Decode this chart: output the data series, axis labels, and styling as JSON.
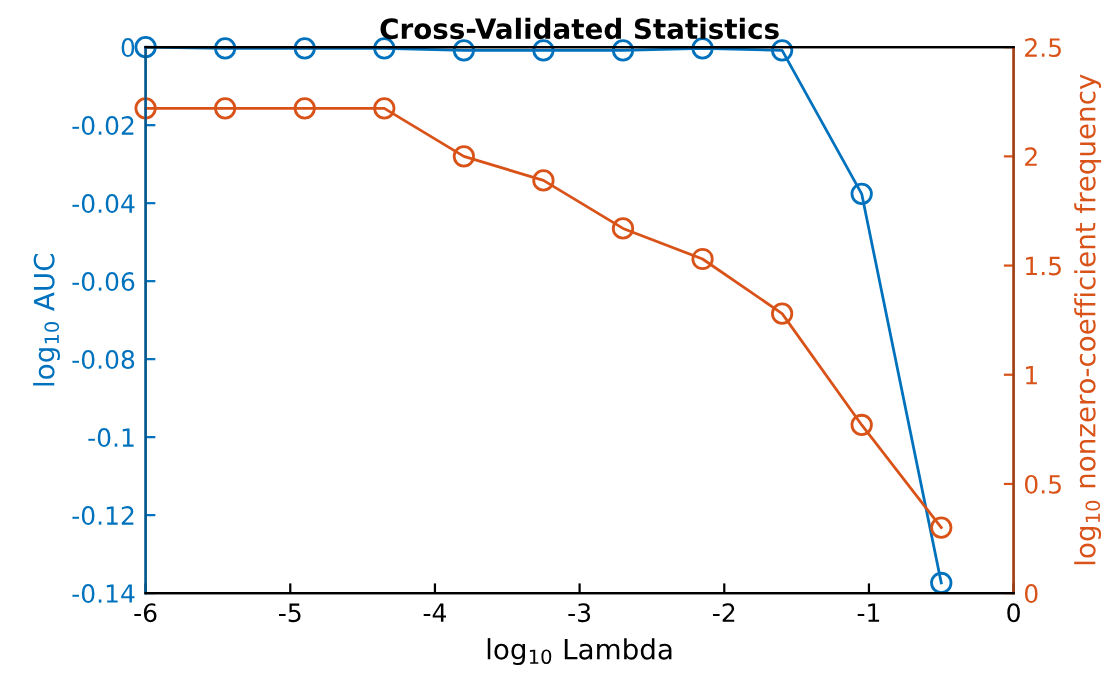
{
  "chart_data": {
    "type": "line",
    "title": "Cross-Validated Statistics",
    "xlabel": "log$_{10}$ Lambda",
    "ylabel": "log$_{10}$ AUC",
    "y2label": "log$_{10}$ nonzero-coefficient frequency",
    "x": [
      -6,
      -5.45,
      -4.9,
      -4.35,
      -3.8,
      -3.25,
      -2.7,
      -2.15,
      -1.6,
      -1.05,
      -0.5
    ],
    "series": [
      {
        "color": "#0072bd",
        "values": [
          0,
          -0.0003,
          -0.0003,
          -0.0003,
          -0.0008,
          -0.0008,
          -0.0008,
          -0.0003,
          -0.0008,
          -0.0376,
          -0.1374
        ]
      },
      {
        "color": "#d95319",
        "axis": "y2",
        "values": [
          2.22,
          2.22,
          2.22,
          2.22,
          2.0,
          1.89,
          1.67,
          1.53,
          1.28,
          0.77,
          0.3
        ]
      }
    ],
    "xlim": [
      -6,
      0
    ],
    "xticks": [
      -6,
      -5,
      -4,
      -3,
      -2,
      -1,
      0
    ],
    "ylim": [
      -0.14,
      0
    ],
    "yticks": [
      -0.14,
      -0.12,
      -0.1,
      -0.08,
      -0.06,
      -0.04,
      -0.02,
      0
    ],
    "y2lim": [
      0,
      2.5
    ],
    "y2ticks": [
      0,
      0.5,
      1,
      1.5,
      2,
      2.5
    ],
    "marker": "circle",
    "line_style": "solid",
    "grid": false,
    "legend": false
  }
}
